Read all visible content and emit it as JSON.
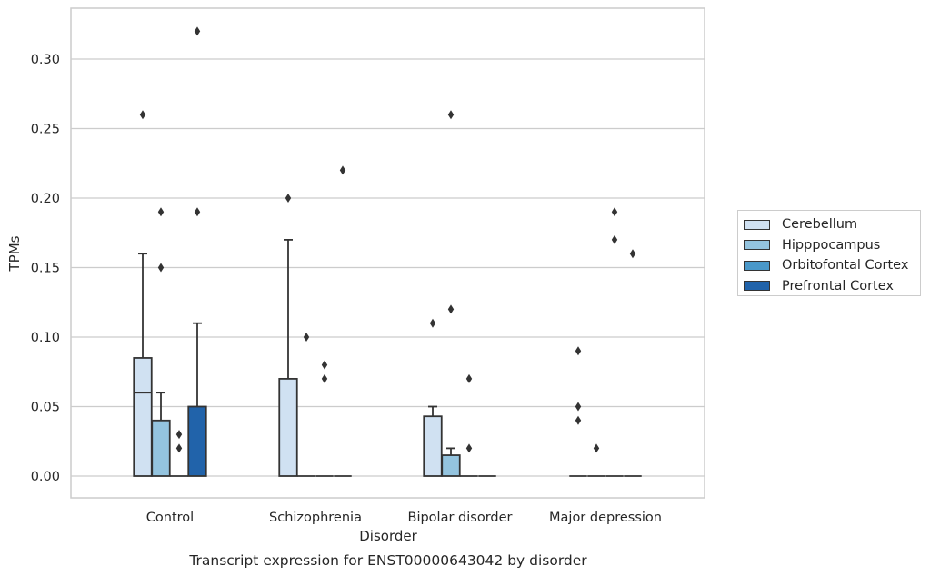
{
  "chart_data": {
    "type": "box",
    "title": "Transcript expression for ENST00000643042 by disorder",
    "xlabel": "Disorder",
    "ylabel": "TPMs",
    "ylim": [
      -0.016,
      0.337
    ],
    "yticks": [
      "0.00",
      "0.05",
      "0.10",
      "0.15",
      "0.20",
      "0.25",
      "0.30"
    ],
    "ytick_values": [
      0,
      0.05,
      0.1,
      0.15,
      0.2,
      0.25,
      0.3
    ],
    "categories": [
      "Control",
      "Schizophrenia",
      "Bipolar disorder",
      "Major depression"
    ],
    "grid": "horizontal",
    "legend_position": "right",
    "series": [
      {
        "name": "Cerebellum",
        "color": "#d0e1f2",
        "boxes": [
          {
            "q1": 0,
            "median": 0.06,
            "q3": 0.085,
            "whisker_low": 0,
            "whisker_high": 0.16,
            "outliers": [
              0.26
            ]
          },
          {
            "q1": 0,
            "median": 0,
            "q3": 0.07,
            "whisker_low": 0,
            "whisker_high": 0.17,
            "outliers": [
              0.2
            ]
          },
          {
            "q1": 0,
            "median": 0,
            "q3": 0.043,
            "whisker_low": 0,
            "whisker_high": 0.05,
            "outliers": [
              0.11
            ]
          },
          {
            "q1": 0,
            "median": 0,
            "q3": 0,
            "whisker_low": 0,
            "whisker_high": 0,
            "outliers": [
              0.09,
              0.05,
              0.04
            ]
          }
        ]
      },
      {
        "name": "Hipppocampus",
        "color": "#94c4df",
        "boxes": [
          {
            "q1": 0,
            "median": 0,
            "q3": 0.04,
            "whisker_low": 0,
            "whisker_high": 0.06,
            "outliers": [
              0.19,
              0.15
            ]
          },
          {
            "q1": 0,
            "median": 0,
            "q3": 0,
            "whisker_low": 0,
            "whisker_high": 0,
            "outliers": [
              0.1
            ]
          },
          {
            "q1": 0,
            "median": 0,
            "q3": 0.015,
            "whisker_low": 0,
            "whisker_high": 0.02,
            "outliers": [
              0.26,
              0.12
            ]
          },
          {
            "q1": 0,
            "median": 0,
            "q3": 0,
            "whisker_low": 0,
            "whisker_high": 0,
            "outliers": [
              0.02
            ]
          }
        ]
      },
      {
        "name": "Orbitofontal Cortex",
        "color": "#4a98c9",
        "boxes": [
          {
            "q1": 0,
            "median": 0,
            "q3": 0,
            "whisker_low": 0,
            "whisker_high": 0,
            "outliers": [
              0.03,
              0.02
            ]
          },
          {
            "q1": 0,
            "median": 0,
            "q3": 0,
            "whisker_low": 0,
            "whisker_high": 0,
            "outliers": [
              0.08,
              0.07
            ]
          },
          {
            "q1": 0,
            "median": 0,
            "q3": 0,
            "whisker_low": 0,
            "whisker_high": 0,
            "outliers": [
              0.07,
              0.02
            ]
          },
          {
            "q1": 0,
            "median": 0,
            "q3": 0,
            "whisker_low": 0,
            "whisker_high": 0,
            "outliers": [
              0.19,
              0.17
            ]
          }
        ]
      },
      {
        "name": "Prefrontal Cortex",
        "color": "#2163aa",
        "boxes": [
          {
            "q1": 0,
            "median": 0,
            "q3": 0.05,
            "whisker_low": 0,
            "whisker_high": 0.11,
            "outliers": [
              0.32,
              0.19
            ]
          },
          {
            "q1": 0,
            "median": 0,
            "q3": 0,
            "whisker_low": 0,
            "whisker_high": 0,
            "outliers": [
              0.22
            ]
          },
          {
            "q1": 0,
            "median": 0,
            "q3": 0,
            "whisker_low": 0,
            "whisker_high": 0,
            "outliers": []
          },
          {
            "q1": 0,
            "median": 0,
            "q3": 0,
            "whisker_low": 0,
            "whisker_high": 0,
            "outliers": [
              0.16
            ]
          }
        ]
      }
    ]
  }
}
